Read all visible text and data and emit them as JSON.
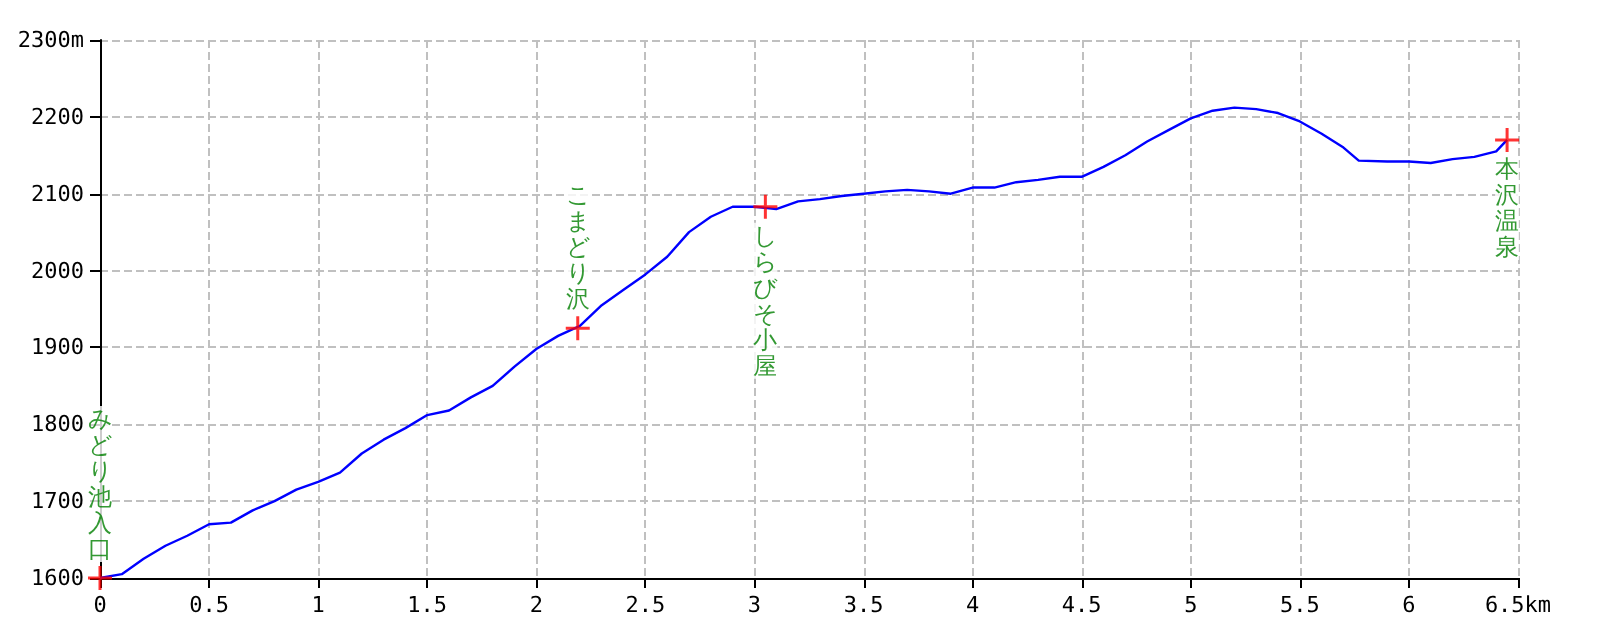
{
  "chart_data": {
    "type": "line",
    "xlim": [
      0,
      6.5
    ],
    "xticks": [
      0,
      0.5,
      1,
      1.5,
      2,
      2.5,
      3,
      3.5,
      4,
      4.5,
      5,
      5.5,
      6,
      {
        "value": 6.5,
        "label": "6.5km"
      }
    ],
    "ylim": [
      1600,
      2300
    ],
    "yticks": [
      1600,
      1700,
      1800,
      1900,
      2000,
      2100,
      2200,
      {
        "value": 2300,
        "label": "2300m"
      }
    ],
    "grid": true,
    "series": [
      {
        "type": "line",
        "color": "#0000ff",
        "marker": "none",
        "line_style": "solid",
        "x": [
          0,
          0.1,
          0.2,
          0.3,
          0.4,
          0.5,
          0.6,
          0.7,
          0.8,
          0.9,
          1.0,
          1.1,
          1.2,
          1.3,
          1.4,
          1.5,
          1.6,
          1.7,
          1.8,
          1.9,
          2.0,
          2.1,
          2.2,
          2.3,
          2.4,
          2.5,
          2.6,
          2.7,
          2.8,
          2.9,
          3.0,
          3.1,
          3.2,
          3.3,
          3.4,
          3.5,
          3.6,
          3.7,
          3.8,
          3.9,
          4.0,
          4.1,
          4.2,
          4.3,
          4.4,
          4.5,
          4.6,
          4.7,
          4.8,
          4.9,
          5.0,
          5.1,
          5.2,
          5.3,
          5.4,
          5.5,
          5.6,
          5.7,
          5.77,
          5.9,
          6.0,
          6.1,
          6.2,
          6.3,
          6.4,
          6.45
        ],
        "values": [
          1600,
          1605,
          1625,
          1642,
          1655,
          1670,
          1672,
          1688,
          1700,
          1715,
          1725,
          1737,
          1762,
          1780,
          1795,
          1812,
          1818,
          1835,
          1850,
          1875,
          1898,
          1915,
          1928,
          1955,
          1975,
          1995,
          2018,
          2050,
          2070,
          2083,
          2083,
          2080,
          2090,
          2093,
          2097,
          2100,
          2103,
          2105,
          2103,
          2100,
          2108,
          2108,
          2115,
          2118,
          2122,
          2122,
          2135,
          2150,
          2168,
          2183,
          2198,
          2208,
          2212,
          2210,
          2205,
          2194,
          2178,
          2160,
          2143,
          2142,
          2142,
          2140,
          2145,
          2148,
          2155,
          2170
        ]
      },
      {
        "type": "scatter",
        "color": "#ff0000",
        "marker": "cross",
        "x": [
          0,
          2.19,
          3.05,
          6.45
        ],
        "values": [
          1600,
          1925,
          2083,
          2170
        ]
      }
    ],
    "annotations": [
      {
        "text": "みどり池入口",
        "x": 0,
        "y": 1600
      },
      {
        "text": "こまどり沢",
        "x": 2.19,
        "y": 1925
      },
      {
        "text": "しらびそ小屋",
        "x": 3.05,
        "y": 2083
      },
      {
        "text": "本沢温泉",
        "x": 6.45,
        "y": 2170
      }
    ]
  }
}
